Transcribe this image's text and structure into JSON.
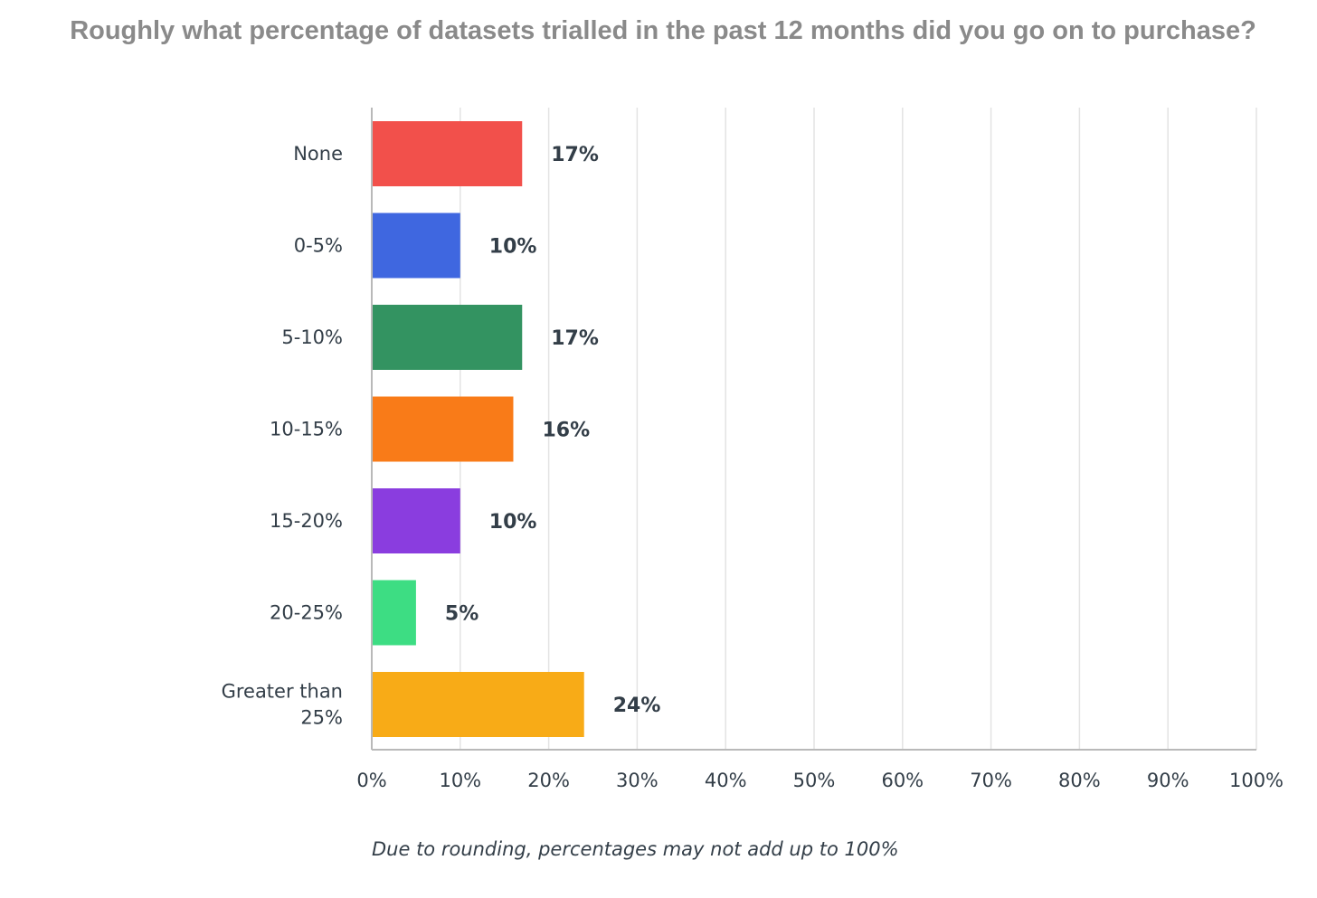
{
  "chart_data": {
    "type": "bar",
    "orientation": "horizontal",
    "title": "Roughly what percentage of datasets trialled in the past 12 months did you go on to purchase?",
    "categories": [
      "None",
      "0-5%",
      "5-10%",
      "10-15%",
      "15-20%",
      "20-25%",
      "Greater than 25%"
    ],
    "category_lines": [
      [
        "None"
      ],
      [
        "0-5%"
      ],
      [
        "5-10%"
      ],
      [
        "10-15%"
      ],
      [
        "15-20%"
      ],
      [
        "20-25%"
      ],
      [
        "Greater than",
        "25%"
      ]
    ],
    "values": [
      17,
      10,
      17,
      16,
      10,
      5,
      24
    ],
    "value_labels": [
      "17%",
      "10%",
      "17%",
      "16%",
      "10%",
      "5%",
      "24%"
    ],
    "colors": [
      "#f2504b",
      "#3f67e0",
      "#339361",
      "#f97b18",
      "#8a3ddf",
      "#3ddd83",
      "#f8ab17"
    ],
    "xlim": [
      0,
      100
    ],
    "x_ticks": [
      "0%",
      "10%",
      "20%",
      "30%",
      "40%",
      "50%",
      "60%",
      "70%",
      "80%",
      "90%",
      "100%"
    ],
    "grid": true,
    "footnote": "Due to rounding, percentages may not add up to 100%"
  }
}
